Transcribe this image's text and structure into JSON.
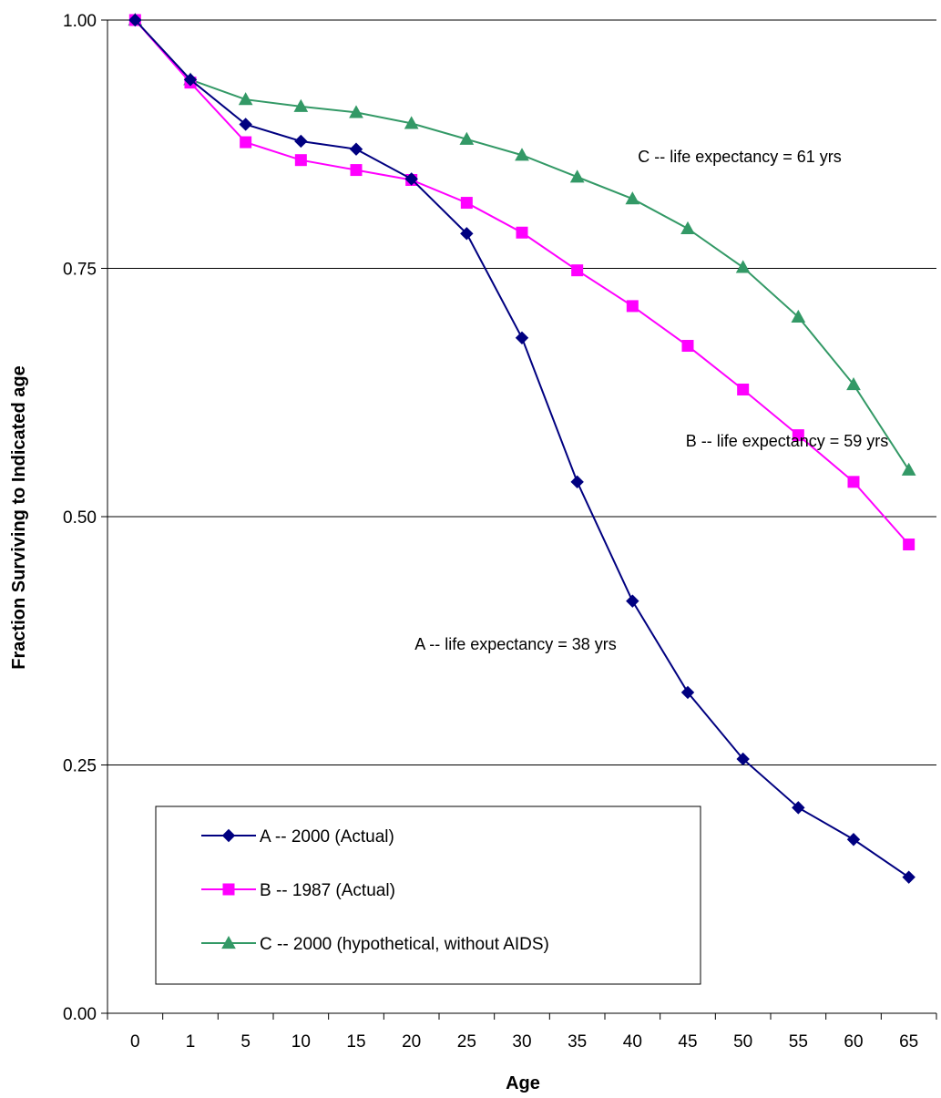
{
  "chart_data": {
    "type": "line",
    "xlabel": "Age",
    "ylabel": "Fraction Surviving to Indicated age",
    "categories": [
      "0",
      "1",
      "5",
      "10",
      "15",
      "20",
      "25",
      "30",
      "35",
      "40",
      "45",
      "50",
      "55",
      "60",
      "65"
    ],
    "ylim": [
      0,
      1
    ],
    "yticks": [
      "0.00",
      "0.25",
      "0.50",
      "0.75",
      "1.00"
    ],
    "grid": true,
    "legend_position": "bottom-left",
    "series": [
      {
        "name": "A -- 2000 (Actual)",
        "color": "#000080",
        "marker": "diamond",
        "values": [
          1.0,
          0.94,
          0.895,
          0.878,
          0.87,
          0.84,
          0.785,
          0.68,
          0.535,
          0.415,
          0.323,
          0.256,
          0.207,
          0.175,
          0.137
        ]
      },
      {
        "name": "B -- 1987 (Actual)",
        "color": "#FF00FF",
        "marker": "square",
        "values": [
          1.0,
          0.937,
          0.877,
          0.859,
          0.849,
          0.839,
          0.816,
          0.786,
          0.748,
          0.712,
          0.672,
          0.628,
          0.582,
          0.535,
          0.472
        ]
      },
      {
        "name": "C -- 2000 (hypothetical, without AIDS)",
        "color": "#339966",
        "marker": "triangle",
        "values": [
          1.0,
          0.94,
          0.92,
          0.913,
          0.907,
          0.896,
          0.88,
          0.864,
          0.842,
          0.82,
          0.79,
          0.751,
          0.701,
          0.633,
          0.547
        ]
      }
    ],
    "annotations": [
      {
        "id": "ann-c",
        "text": "C -- life expectancy  =  61 yrs",
        "series": 2
      },
      {
        "id": "ann-b",
        "text": "B -- life expectancy  =  59 yrs",
        "series": 1
      },
      {
        "id": "ann-a",
        "text": "A -- life expectancy  =  38 yrs",
        "series": 0
      }
    ]
  }
}
